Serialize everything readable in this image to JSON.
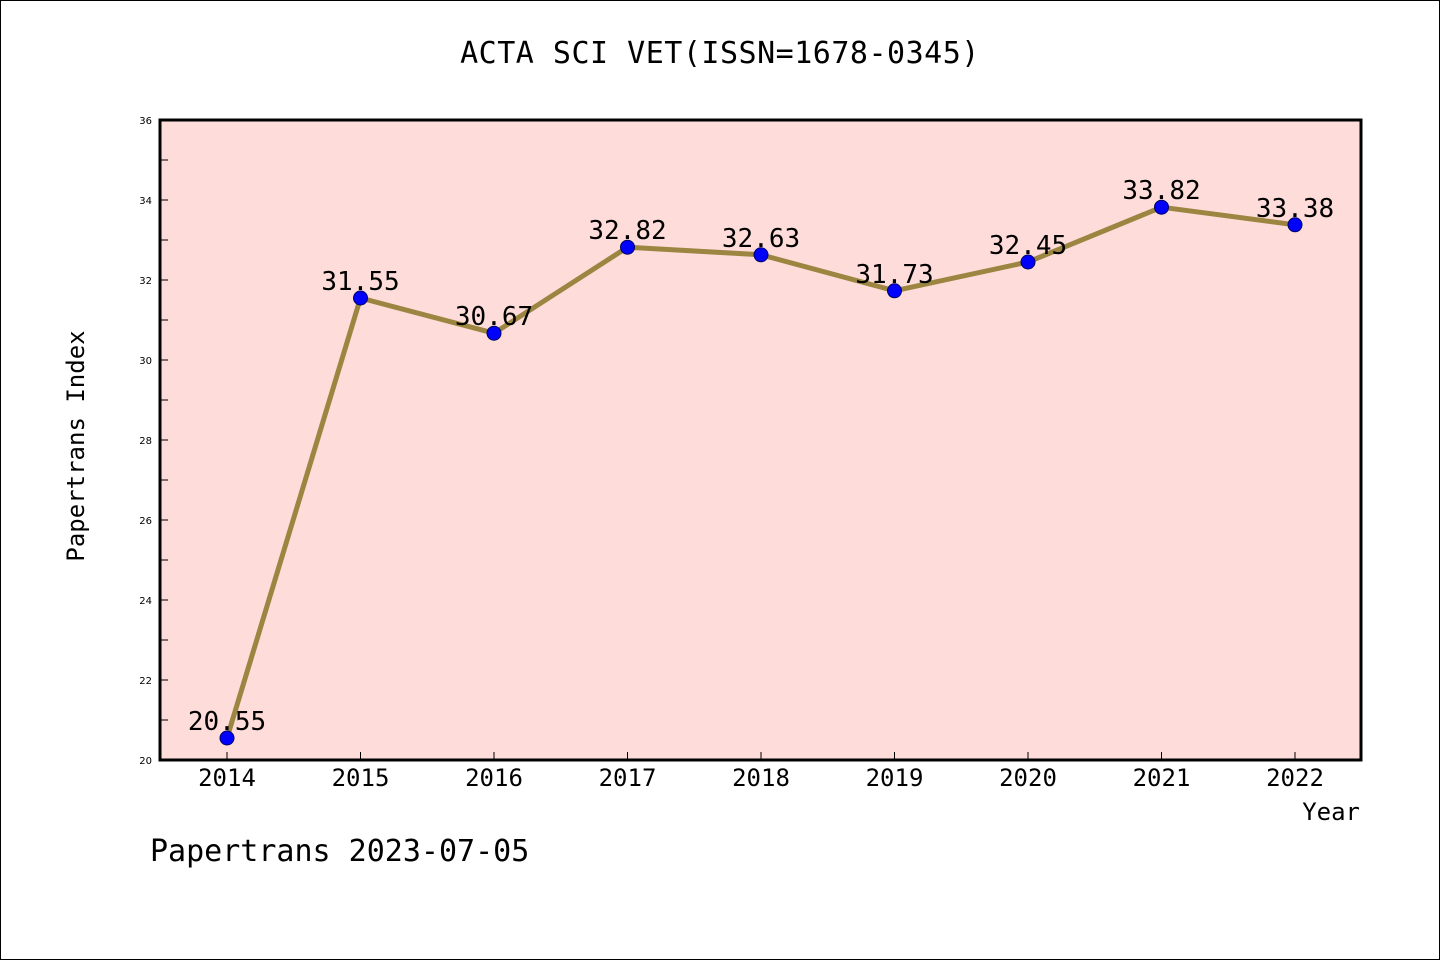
{
  "chart_data": {
    "type": "line",
    "title": "ACTA SCI VET(ISSN=1678-0345)",
    "xlabel": "Year",
    "ylabel": "Papertrans Index",
    "categories": [
      "2014",
      "2015",
      "2016",
      "2017",
      "2018",
      "2019",
      "2020",
      "2021",
      "2022"
    ],
    "values": [
      20.55,
      31.55,
      30.67,
      32.82,
      32.63,
      31.73,
      32.45,
      33.82,
      33.38
    ],
    "data_labels": [
      "20.55",
      "31.55",
      "30.67",
      "32.82",
      "32.63",
      "31.73",
      "32.45",
      "33.82",
      "33.38"
    ],
    "ylim": [
      20,
      36
    ],
    "yticks": [
      "20",
      "22",
      "24",
      "26",
      "28",
      "30",
      "32",
      "34",
      "36"
    ],
    "grid": false,
    "legend": "none",
    "colors": {
      "plot_background": "#fddcd9",
      "line": "#9b8540",
      "marker": "#0000ff"
    }
  },
  "footer": "Papertrans 2023-07-05"
}
